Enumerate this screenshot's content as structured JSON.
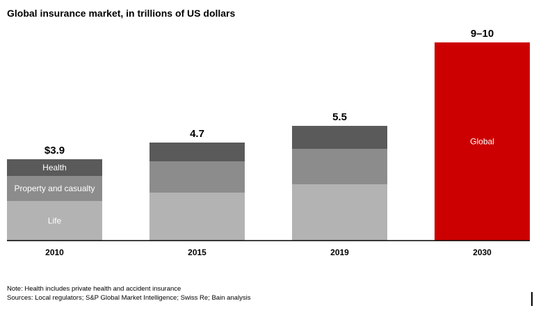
{
  "title": "Global insurance market, in trillions of US dollars",
  "notes": {
    "note": "Note: Health includes private health and accident insurance",
    "sources": "Sources: Local regulators; S&P Global Market Intelligence; Swiss Re; Bain analysis"
  },
  "colors": {
    "life": "#b3b3b3",
    "property_casualty": "#8c8c8c",
    "health": "#5a5a5a",
    "global": "#cc0000",
    "axis": "#000000"
  },
  "chart_data": {
    "type": "bar",
    "stacked": true,
    "title": "Global insurance market, in trillions of US dollars",
    "categories": [
      "2010",
      "2015",
      "2019",
      "2030"
    ],
    "series": [
      {
        "name": "Life",
        "values": [
          1.9,
          2.3,
          2.7,
          null
        ],
        "color": "#b3b3b3"
      },
      {
        "name": "Property and casualty",
        "values": [
          1.2,
          1.5,
          1.7,
          null
        ],
        "color": "#8c8c8c"
      },
      {
        "name": "Health",
        "values": [
          0.8,
          0.9,
          1.1,
          null
        ],
        "color": "#5a5a5a"
      },
      {
        "name": "Global",
        "values": [
          null,
          null,
          null,
          9.5
        ],
        "color": "#cc0000"
      }
    ],
    "totals": [
      "$3.9",
      "4.7",
      "5.5",
      "9–10"
    ],
    "segment_labels": {
      "2010": [
        "Life",
        "Property and casualty",
        "Health"
      ],
      "2030": [
        "Global"
      ]
    },
    "ylim": [
      0,
      9.5
    ],
    "grid": false,
    "legend": "none"
  }
}
